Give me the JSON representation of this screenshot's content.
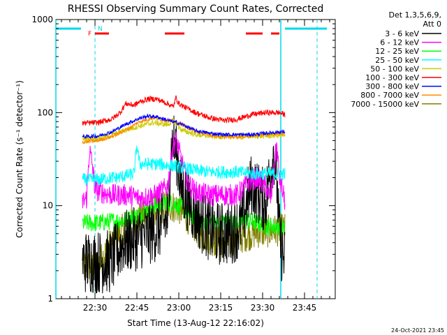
{
  "chart_data": {
    "type": "line",
    "title": "RHESSI Observing Summary Count Rates, Corrected",
    "xlabel": "Start Time (13-Aug-12 22:16:02)",
    "ylabel": "Corrected Count Rate (s⁻¹ detector⁻¹)",
    "y_scale": "log",
    "ylim": [
      1,
      1000
    ],
    "xlim_minutes": [
      0,
      100
    ],
    "x_ticks": [
      {
        "label": "22:30",
        "minute": 14
      },
      {
        "label": "22:45",
        "minute": 29
      },
      {
        "label": "23:00",
        "minute": 44
      },
      {
        "label": "23:15",
        "minute": 59
      },
      {
        "label": "23:30",
        "minute": 74
      },
      {
        "label": "23:45",
        "minute": 89
      }
    ],
    "y_ticks": [
      {
        "label": "1",
        "value": 1
      },
      {
        "label": "10",
        "value": 10
      },
      {
        "label": "100",
        "value": 100
      },
      {
        "label": "1000",
        "value": 1000
      }
    ],
    "legend_header": [
      "Det 1,3,5,6,9,",
      "Att 0"
    ],
    "legend_position": "right",
    "date_stamp": "24-Oct-2021 23:45",
    "flags": {
      "F_label": "F",
      "N_label": "N",
      "night_color": "#00d8e8",
      "flare_color": "#ff0000",
      "night_dashed_lines_minute": [
        14,
        93.5
      ],
      "day_vertical_lines_minute": [
        0,
        80.5
      ],
      "night_bars": [
        [
          0,
          9
        ],
        [
          82,
          97
        ]
      ],
      "flare_bars": [
        [
          14,
          19
        ],
        [
          39,
          46
        ],
        [
          68,
          74
        ],
        [
          77,
          80
        ]
      ]
    },
    "series": [
      {
        "name": "3 - 6 keV",
        "color": "#000000",
        "x": [
          9.5,
          20,
          24,
          30,
          36,
          40,
          41,
          42,
          43,
          44,
          45,
          47,
          50,
          55,
          58,
          62,
          66,
          68,
          70,
          72,
          75,
          77,
          78,
          79,
          80,
          81,
          82
        ],
        "y": [
          2.5,
          2.5,
          4,
          4.5,
          5.5,
          7,
          35,
          50,
          40,
          25,
          15,
          12,
          8,
          5.5,
          5,
          5,
          6,
          10,
          17,
          14,
          11,
          25,
          40,
          20,
          5,
          3,
          2.5
        ]
      },
      {
        "name": "6 - 12 keV",
        "color": "#ff00ff",
        "x": [
          9.5,
          11,
          12,
          13,
          14,
          16,
          20,
          26,
          30,
          36,
          40,
          42,
          43,
          44,
          45,
          47,
          50,
          55,
          60,
          65,
          69,
          72,
          75,
          77,
          79,
          80,
          82
        ],
        "y": [
          11,
          12,
          40,
          28,
          15,
          14,
          13,
          13,
          12,
          13,
          16,
          45,
          50,
          40,
          30,
          18,
          14,
          13,
          13,
          13,
          18,
          20,
          16,
          12,
          45,
          20,
          11
        ]
      },
      {
        "name": "12 - 25 keV",
        "color": "#00ff00",
        "x": [
          9.5,
          15,
          20,
          25,
          30,
          35,
          40,
          44,
          48,
          52,
          56,
          60,
          64,
          68,
          72,
          76,
          80,
          82
        ],
        "y": [
          6.5,
          6.5,
          6.8,
          7,
          8,
          10,
          11,
          10,
          8,
          7,
          6.5,
          6.5,
          6.5,
          7,
          6.5,
          6,
          6,
          5.5
        ]
      },
      {
        "name": "25 - 50 keV",
        "color": "#00ffff",
        "x": [
          9.5,
          15,
          20,
          22,
          25,
          28,
          29,
          30,
          33,
          37,
          40,
          42,
          44,
          47,
          50,
          55,
          60,
          65,
          70,
          75,
          80,
          82
        ],
        "y": [
          19,
          19,
          20,
          20,
          21,
          22,
          45,
          28,
          28,
          28,
          27,
          27,
          26,
          25,
          24,
          23,
          23,
          23,
          22,
          22,
          22,
          22
        ]
      },
      {
        "name": "50 - 100 keV",
        "color": "#cccc00",
        "x": [
          9.5,
          15,
          20,
          25,
          30,
          35,
          40,
          42,
          45,
          50,
          55,
          60,
          65,
          70,
          75,
          80,
          82
        ],
        "y": [
          52,
          53,
          57,
          65,
          72,
          78,
          74,
          82,
          65,
          58,
          56,
          55,
          55,
          56,
          56,
          57,
          55
        ]
      },
      {
        "name": "100 - 300 keV",
        "color": "#ff0000",
        "x": [
          9.5,
          15,
          20,
          23,
          25,
          28,
          30,
          33,
          36,
          40,
          42,
          43,
          44,
          46,
          50,
          55,
          60,
          65,
          70,
          75,
          80,
          82
        ],
        "y": [
          77,
          78,
          85,
          100,
          125,
          120,
          130,
          140,
          140,
          125,
          115,
          145,
          125,
          115,
          100,
          88,
          82,
          85,
          95,
          100,
          100,
          95
        ]
      },
      {
        "name": "300 - 800 keV",
        "color": "#0000ff",
        "x": [
          9.5,
          15,
          20,
          25,
          30,
          33,
          36,
          40,
          45,
          50,
          55,
          60,
          65,
          70,
          75,
          80,
          82
        ],
        "y": [
          55,
          56,
          62,
          75,
          87,
          92,
          90,
          83,
          75,
          64,
          60,
          58,
          58,
          58,
          60,
          62,
          62
        ]
      },
      {
        "name": "800 - 7000 keV",
        "color": "#ff8c00",
        "x": [
          9.5,
          15,
          20,
          25,
          30,
          35,
          40,
          45,
          50,
          55,
          60,
          65,
          70,
          75,
          80,
          82
        ],
        "y": [
          48,
          50,
          55,
          65,
          80,
          88,
          82,
          75,
          62,
          57,
          55,
          55,
          56,
          58,
          60,
          60
        ]
      },
      {
        "name": "7000 - 15000 keV",
        "color": "#808000",
        "x": [
          9.5,
          15,
          20,
          25,
          30,
          35,
          40,
          44,
          48,
          52,
          56,
          60,
          64,
          68,
          72,
          76,
          80,
          82
        ],
        "y": [
          2.2,
          2.3,
          4,
          6,
          7.5,
          9,
          10,
          9.5,
          7,
          5,
          4.3,
          4,
          4.2,
          4.8,
          5.2,
          5.3,
          5.5,
          5.5
        ]
      }
    ]
  }
}
